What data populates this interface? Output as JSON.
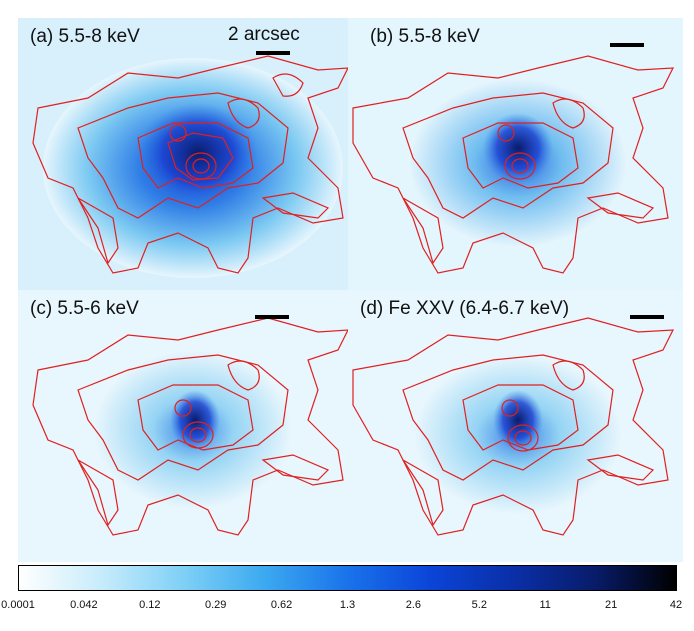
{
  "panels": [
    {
      "label": "(a) 5.5-8 keV",
      "band_hex": "#1d5fe0",
      "scale_text": "2 arcsec"
    },
    {
      "label": "(b) 5.5-8 keV",
      "band_hex": "#2a62de"
    },
    {
      "label": "(c) 5.5-6 keV",
      "band_hex": "#2d6ae3"
    },
    {
      "label": "(d) Fe XXV (6.4-6.7 keV)",
      "band_hex": "#2d6ae3"
    }
  ],
  "colorbar": {
    "ticks": [
      "0.0001",
      "0.042",
      "0.12",
      "0.29",
      "0.62",
      "1.3",
      "2.6",
      "5.2",
      "11",
      "21",
      "42"
    ],
    "colors": [
      "#ffffff",
      "#c7ecfb",
      "#7fd0f6",
      "#3ba9f0",
      "#1a73ea",
      "#0b45d8",
      "#0a2fa8",
      "#081c6b",
      "#000000"
    ]
  },
  "contour_color": "#e02020"
}
